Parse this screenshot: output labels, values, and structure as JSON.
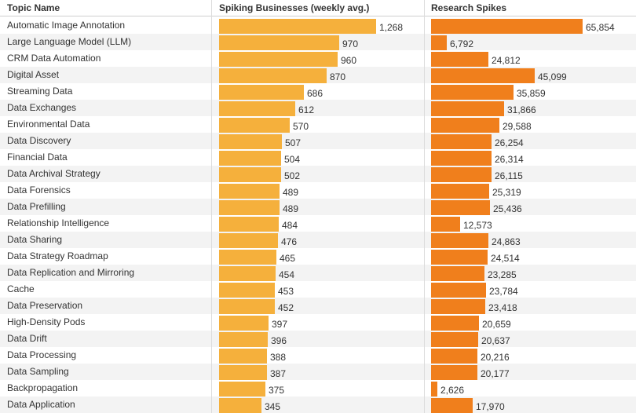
{
  "chart_data": {
    "type": "table",
    "columns": [
      "Topic Name",
      "Spiking Businesses (weekly avg.)",
      "Research Spikes"
    ],
    "colors": {
      "businesses": "#f5b03c",
      "research": "#f07f1c"
    },
    "rows": [
      {
        "topic": "Automatic Image Annotation",
        "businesses": 1268,
        "businesses_label": "1,268",
        "research": 65854,
        "research_label": "65,854"
      },
      {
        "topic": "Large Language Model (LLM)",
        "businesses": 970,
        "businesses_label": "970",
        "research": 6792,
        "research_label": "6,792"
      },
      {
        "topic": "CRM Data Automation",
        "businesses": 960,
        "businesses_label": "960",
        "research": 24812,
        "research_label": "24,812"
      },
      {
        "topic": "Digital Asset",
        "businesses": 870,
        "businesses_label": "870",
        "research": 45099,
        "research_label": "45,099"
      },
      {
        "topic": "Streaming Data",
        "businesses": 686,
        "businesses_label": "686",
        "research": 35859,
        "research_label": "35,859"
      },
      {
        "topic": "Data Exchanges",
        "businesses": 612,
        "businesses_label": "612",
        "research": 31866,
        "research_label": "31,866"
      },
      {
        "topic": "Environmental Data",
        "businesses": 570,
        "businesses_label": "570",
        "research": 29588,
        "research_label": "29,588"
      },
      {
        "topic": "Data Discovery",
        "businesses": 507,
        "businesses_label": "507",
        "research": 26254,
        "research_label": "26,254"
      },
      {
        "topic": "Financial Data",
        "businesses": 504,
        "businesses_label": "504",
        "research": 26314,
        "research_label": "26,314"
      },
      {
        "topic": "Data Archival Strategy",
        "businesses": 502,
        "businesses_label": "502",
        "research": 26115,
        "research_label": "26,115"
      },
      {
        "topic": "Data Forensics",
        "businesses": 489,
        "businesses_label": "489",
        "research": 25319,
        "research_label": "25,319"
      },
      {
        "topic": "Data Prefilling",
        "businesses": 489,
        "businesses_label": "489",
        "research": 25436,
        "research_label": "25,436"
      },
      {
        "topic": "Relationship Intelligence",
        "businesses": 484,
        "businesses_label": "484",
        "research": 12573,
        "research_label": "12,573"
      },
      {
        "topic": "Data Sharing",
        "businesses": 476,
        "businesses_label": "476",
        "research": 24863,
        "research_label": "24,863"
      },
      {
        "topic": "Data Strategy Roadmap",
        "businesses": 465,
        "businesses_label": "465",
        "research": 24514,
        "research_label": "24,514"
      },
      {
        "topic": "Data Replication and Mirroring",
        "businesses": 454,
        "businesses_label": "454",
        "research": 23285,
        "research_label": "23,285"
      },
      {
        "topic": "Cache",
        "businesses": 453,
        "businesses_label": "453",
        "research": 23784,
        "research_label": "23,784"
      },
      {
        "topic": "Data Preservation",
        "businesses": 452,
        "businesses_label": "452",
        "research": 23418,
        "research_label": "23,418"
      },
      {
        "topic": "High-Density Pods",
        "businesses": 397,
        "businesses_label": "397",
        "research": 20659,
        "research_label": "20,659"
      },
      {
        "topic": "Data Drift",
        "businesses": 396,
        "businesses_label": "396",
        "research": 20637,
        "research_label": "20,637"
      },
      {
        "topic": "Data Processing",
        "businesses": 388,
        "businesses_label": "388",
        "research": 20216,
        "research_label": "20,216"
      },
      {
        "topic": "Data Sampling",
        "businesses": 387,
        "businesses_label": "387",
        "research": 20177,
        "research_label": "20,177"
      },
      {
        "topic": "Backpropagation",
        "businesses": 375,
        "businesses_label": "375",
        "research": 2626,
        "research_label": "2,626"
      },
      {
        "topic": "Data Application",
        "businesses": 345,
        "businesses_label": "345",
        "research": 17970,
        "research_label": "17,970"
      }
    ]
  }
}
